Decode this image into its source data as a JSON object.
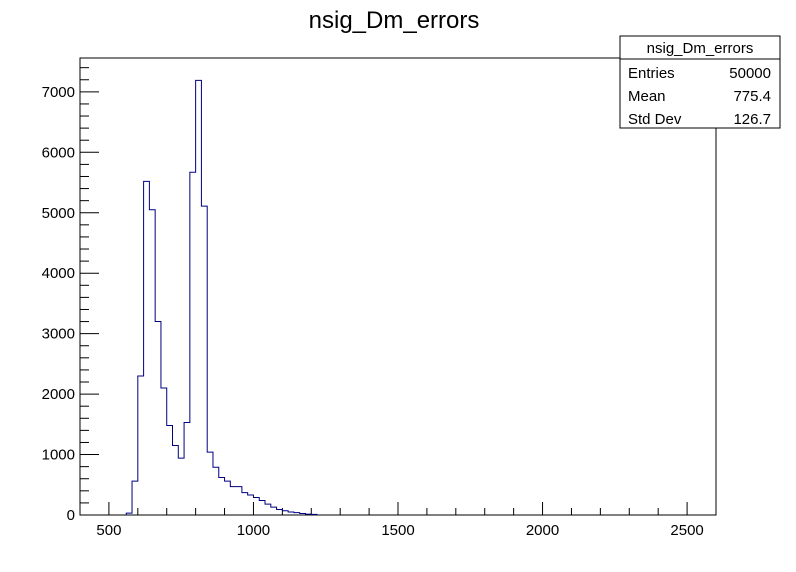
{
  "chart_data": {
    "type": "histogram",
    "title": "nsig_Dm_errors",
    "xlabel": "",
    "ylabel": "",
    "xlim": [
      400,
      2600
    ],
    "ylim": [
      0,
      7560
    ],
    "bin_width": 20,
    "bin_start": 560,
    "values": [
      30,
      560,
      2300,
      5520,
      5050,
      3200,
      2100,
      1480,
      1150,
      940,
      1530,
      5670,
      7190,
      5110,
      1040,
      790,
      620,
      560,
      470,
      470,
      370,
      330,
      290,
      240,
      180,
      130,
      90,
      70,
      50,
      40,
      25,
      15,
      10
    ],
    "x_ticks": [
      {
        "value": 500,
        "label": "500"
      },
      {
        "value": 1000,
        "label": "1000"
      },
      {
        "value": 1500,
        "label": "1500"
      },
      {
        "value": 2000,
        "label": "2000"
      },
      {
        "value": 2500,
        "label": "2500"
      }
    ],
    "y_ticks": [
      {
        "value": 0,
        "label": "0"
      },
      {
        "value": 1000,
        "label": "1000"
      },
      {
        "value": 2000,
        "label": "2000"
      },
      {
        "value": 3000,
        "label": "3000"
      },
      {
        "value": 4000,
        "label": "4000"
      },
      {
        "value": 5000,
        "label": "5000"
      },
      {
        "value": 6000,
        "label": "6000"
      },
      {
        "value": 7000,
        "label": "7000"
      }
    ],
    "line_color": "#000080",
    "grid": false,
    "legend": "none",
    "stats_box": {
      "title": "nsig_Dm_errors",
      "rows": [
        {
          "label": "Entries",
          "value": "50000"
        },
        {
          "label": "Mean",
          "value": "775.4"
        },
        {
          "label": "Std Dev",
          "value": "126.7"
        }
      ]
    }
  }
}
